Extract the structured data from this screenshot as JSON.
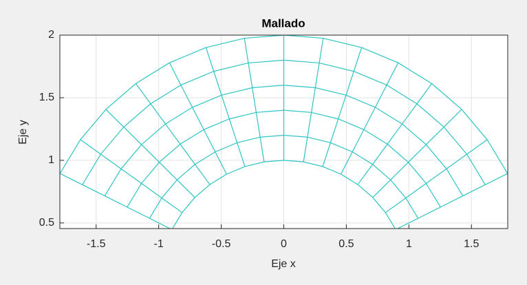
{
  "chart_data": {
    "type": "mesh",
    "title": "Mallado",
    "x_label": "Eje x",
    "y_label": "Eje y",
    "mesh": {
      "color": "#2ec4c4",
      "radii": [
        1,
        1.2,
        1.4,
        1.6,
        1.8,
        2
      ],
      "angles_deg": [
        153.43,
        144.37,
        135.31,
        126.25,
        117.19,
        108.12,
        99.06,
        90,
        80.94,
        71.88,
        62.81,
        53.75,
        44.69,
        35.63,
        26.57
      ]
    },
    "xlim": [
      -1.79,
      1.79
    ],
    "ylim": [
      0.455,
      2
    ],
    "xticks": [
      -1.5,
      -1,
      -0.5,
      0,
      0.5,
      1,
      1.5
    ],
    "yticks": [
      0.5,
      1,
      1.5,
      2
    ],
    "grid": true
  }
}
